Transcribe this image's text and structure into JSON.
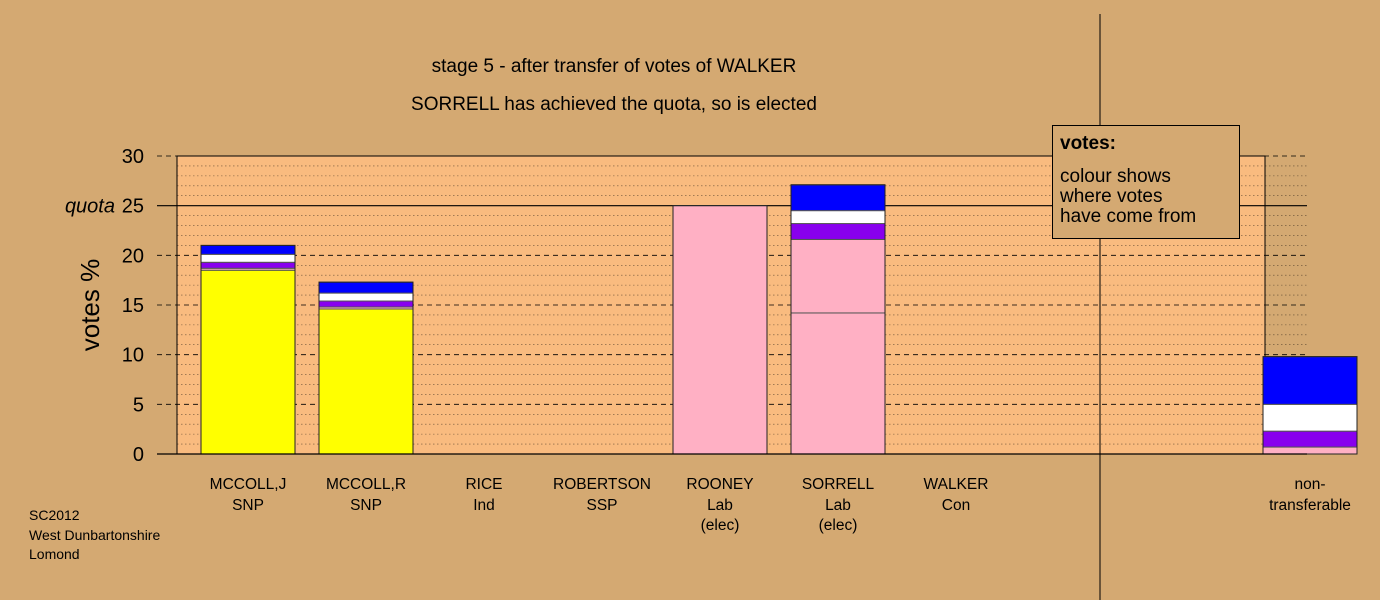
{
  "chart_data": {
    "type": "bar",
    "stacked": true,
    "title": "stage 5 - after transfer of votes of WALKER",
    "subtitle": "SORRELL has achieved the quota, so is elected",
    "ylabel": "votes %",
    "ylim": [
      0,
      30
    ],
    "yticks": [
      "0",
      "5",
      "10",
      "15",
      "20",
      "25",
      "30"
    ],
    "quota_label": "quota",
    "quota_value": 25,
    "grid": true,
    "legend_placement": "top-right",
    "categories": [
      {
        "name": "MCCOLL,J",
        "party": "SNP",
        "status": ""
      },
      {
        "name": "MCCOLL,R",
        "party": "SNP",
        "status": ""
      },
      {
        "name": "RICE",
        "party": "Ind",
        "status": ""
      },
      {
        "name": "ROBERTSON",
        "party": "SSP",
        "status": ""
      },
      {
        "name": "ROONEY",
        "party": "Lab",
        "status": "(elec)"
      },
      {
        "name": "SORRELL",
        "party": "Lab",
        "status": "(elec)"
      },
      {
        "name": "WALKER",
        "party": "Con",
        "status": ""
      },
      {
        "name": "non-",
        "party": "transferable",
        "status": ""
      }
    ],
    "segments": [
      [
        {
          "value": 18.5,
          "color": "#ffff00"
        },
        {
          "value": 0.2,
          "color": "#ffb0c4"
        },
        {
          "value": 0.6,
          "color": "#8800ee"
        },
        {
          "value": 0.8,
          "color": "#ffffff"
        },
        {
          "value": 0.9,
          "color": "#0000ff"
        }
      ],
      [
        {
          "value": 14.6,
          "color": "#ffff00"
        },
        {
          "value": 0.2,
          "color": "#ffb0c4"
        },
        {
          "value": 0.6,
          "color": "#8800ee"
        },
        {
          "value": 0.8,
          "color": "#ffffff"
        },
        {
          "value": 1.1,
          "color": "#0000ff"
        }
      ],
      [],
      [],
      [
        {
          "value": 25.0,
          "color": "#ffb0c4"
        }
      ],
      [
        {
          "value": 14.2,
          "color": "#ffb0c4"
        },
        {
          "value": 7.4,
          "color": "#ffb0c4"
        },
        {
          "value": 1.6,
          "color": "#8800ee"
        },
        {
          "value": 1.3,
          "color": "#ffffff"
        },
        {
          "value": 2.6,
          "color": "#0000ff"
        }
      ],
      [],
      [
        {
          "value": 0.7,
          "color": "#ffb0c4"
        },
        {
          "value": 1.6,
          "color": "#8800ee"
        },
        {
          "value": 2.7,
          "color": "#ffffff"
        },
        {
          "value": 4.8,
          "color": "#0000ff"
        }
      ]
    ]
  },
  "legend": {
    "title": "votes:",
    "lines": [
      "colour shows",
      "where votes",
      "have come from"
    ]
  },
  "footer": {
    "lines": [
      "SC2012",
      "West Dunbartonshire",
      "Lomond"
    ]
  },
  "colors": {
    "background": "#d4a972",
    "plot_area": "#f9bb7f"
  }
}
